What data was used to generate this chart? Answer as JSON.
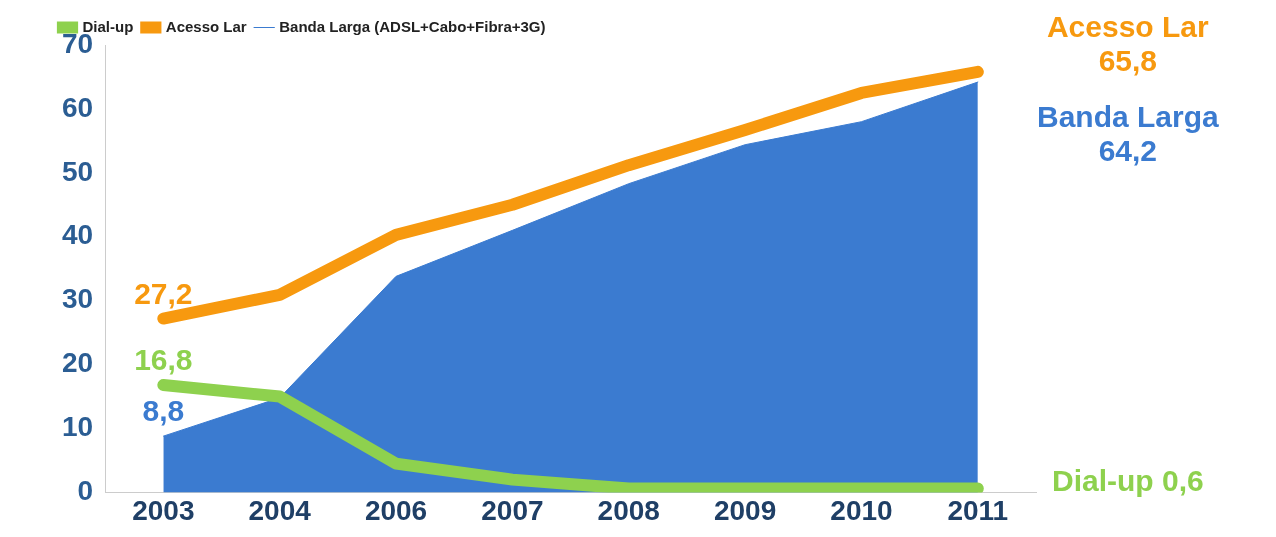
{
  "chart_data": {
    "type": "line",
    "categories": [
      "2003",
      "2004",
      "2006",
      "2007",
      "2008",
      "2009",
      "2010",
      "2011"
    ],
    "series": [
      {
        "name": "Banda Larga (ADSL+Cabo+Fibra+3G)",
        "type": "area",
        "color": "#3b7bd0",
        "values": [
          8.8,
          14.8,
          33.8,
          41,
          48.3,
          54.4,
          58,
          64.2
        ]
      },
      {
        "name": "Dial-up",
        "color": "#8ed14e",
        "values": [
          16.8,
          15,
          4.5,
          2,
          0.6,
          0.6,
          0.6,
          0.6
        ]
      },
      {
        "name": "Acesso Lar",
        "color": "#f7990f",
        "values": [
          27.2,
          30.9,
          40.3,
          45,
          51.2,
          56.7,
          62.5,
          65.8
        ]
      }
    ],
    "ylim": [
      0,
      70
    ],
    "yticks": [
      0,
      10,
      20,
      30,
      40,
      50,
      60,
      70
    ],
    "grid": false,
    "legend": "top left",
    "marker": "none",
    "annotations": [
      {
        "text": "27,2",
        "x": "2003",
        "y": 27.2
      },
      {
        "text": "16,8",
        "x": "2003",
        "y": 16.8
      },
      {
        "text": "8,8",
        "x": "2003",
        "y": 8.8
      },
      {
        "text": "Acesso Lar\n65,8",
        "x": "2011",
        "y": 65.8
      },
      {
        "text": "Banda Larga\n64,2",
        "x": "2011",
        "y": 64.2
      },
      {
        "text": "Dial-up 0,6",
        "x": "2011",
        "y": 0.6
      }
    ]
  }
}
